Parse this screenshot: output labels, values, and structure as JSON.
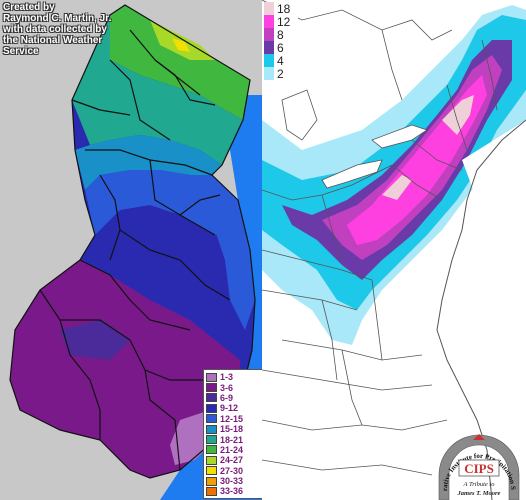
{
  "credit": {
    "line1": "Created by",
    "line2": "Raymond C. Martin, Jr.",
    "line3": "with data collected by",
    "line4": "the National Weather",
    "line5": "Service"
  },
  "nj_legend": [
    {
      "label": "1-3",
      "color": "#b070c0"
    },
    {
      "label": "3-6",
      "color": "#7a1a8a"
    },
    {
      "label": "6-9",
      "color": "#4b2a9a"
    },
    {
      "label": "9-12",
      "color": "#2a2ab0"
    },
    {
      "label": "12-15",
      "color": "#2a5ad8"
    },
    {
      "label": "15-18",
      "color": "#1a90c8"
    },
    {
      "label": "18-21",
      "color": "#20a890"
    },
    {
      "label": "21-24",
      "color": "#40b840"
    },
    {
      "label": "24-27",
      "color": "#a8d828"
    },
    {
      "label": "27-30",
      "color": "#f0e000"
    },
    {
      "label": "30-33",
      "color": "#f0a000"
    },
    {
      "label": "33-36",
      "color": "#f07000"
    }
  ],
  "us_legend": [
    {
      "label": "18",
      "color": "#f0d0d8"
    },
    {
      "label": "12",
      "color": "#ff40e0"
    },
    {
      "label": "8",
      "color": "#c040c0"
    },
    {
      "label": "6",
      "color": "#6a3aa8"
    },
    {
      "label": "4",
      "color": "#1ec8e8"
    },
    {
      "label": "2",
      "color": "#a8e8f8"
    }
  ],
  "logo": {
    "acronym": "CIPS",
    "arc_text": "Cooperative Institute for Precipitation Systems",
    "tribute_line1": "A Tribute to",
    "tribute_line2": "James T. Moore"
  }
}
